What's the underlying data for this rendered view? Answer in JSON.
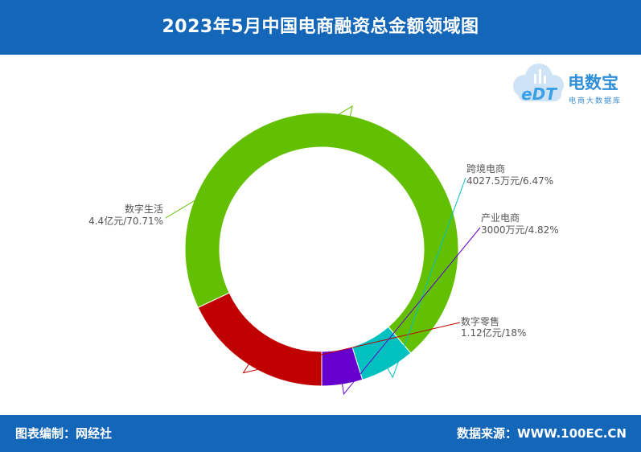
{
  "header": {
    "title": "2023年5月中国电商融资总金额领域图"
  },
  "footer": {
    "left_text": "图表编制：网经社",
    "right_text": "数据来源：WWW.100EC.CN"
  },
  "logo": {
    "main_text": "电数宝",
    "sub_text": "电商大数据库",
    "mark_text": "eDT"
  },
  "colors": {
    "band": "#1466b8",
    "leader": "#888888"
  },
  "chart_data": {
    "type": "pie",
    "donut": true,
    "start_angle_deg": 90,
    "direction": "clockwise",
    "slices": [
      {
        "name": "数字零售",
        "value_label": "1.12亿元/18%",
        "percent": 18,
        "color": "#c00000"
      },
      {
        "name": "数字生活",
        "value_label": "4.4亿元/70.71%",
        "percent": 70.71,
        "color": "#62c000"
      },
      {
        "name": "跨境电商",
        "value_label": "4027.5万元/6.47%",
        "percent": 6.47,
        "color": "#00c0c0"
      },
      {
        "name": "产业电商",
        "value_label": "3000万元/4.82%",
        "percent": 4.82,
        "color": "#6600cc"
      }
    ]
  }
}
